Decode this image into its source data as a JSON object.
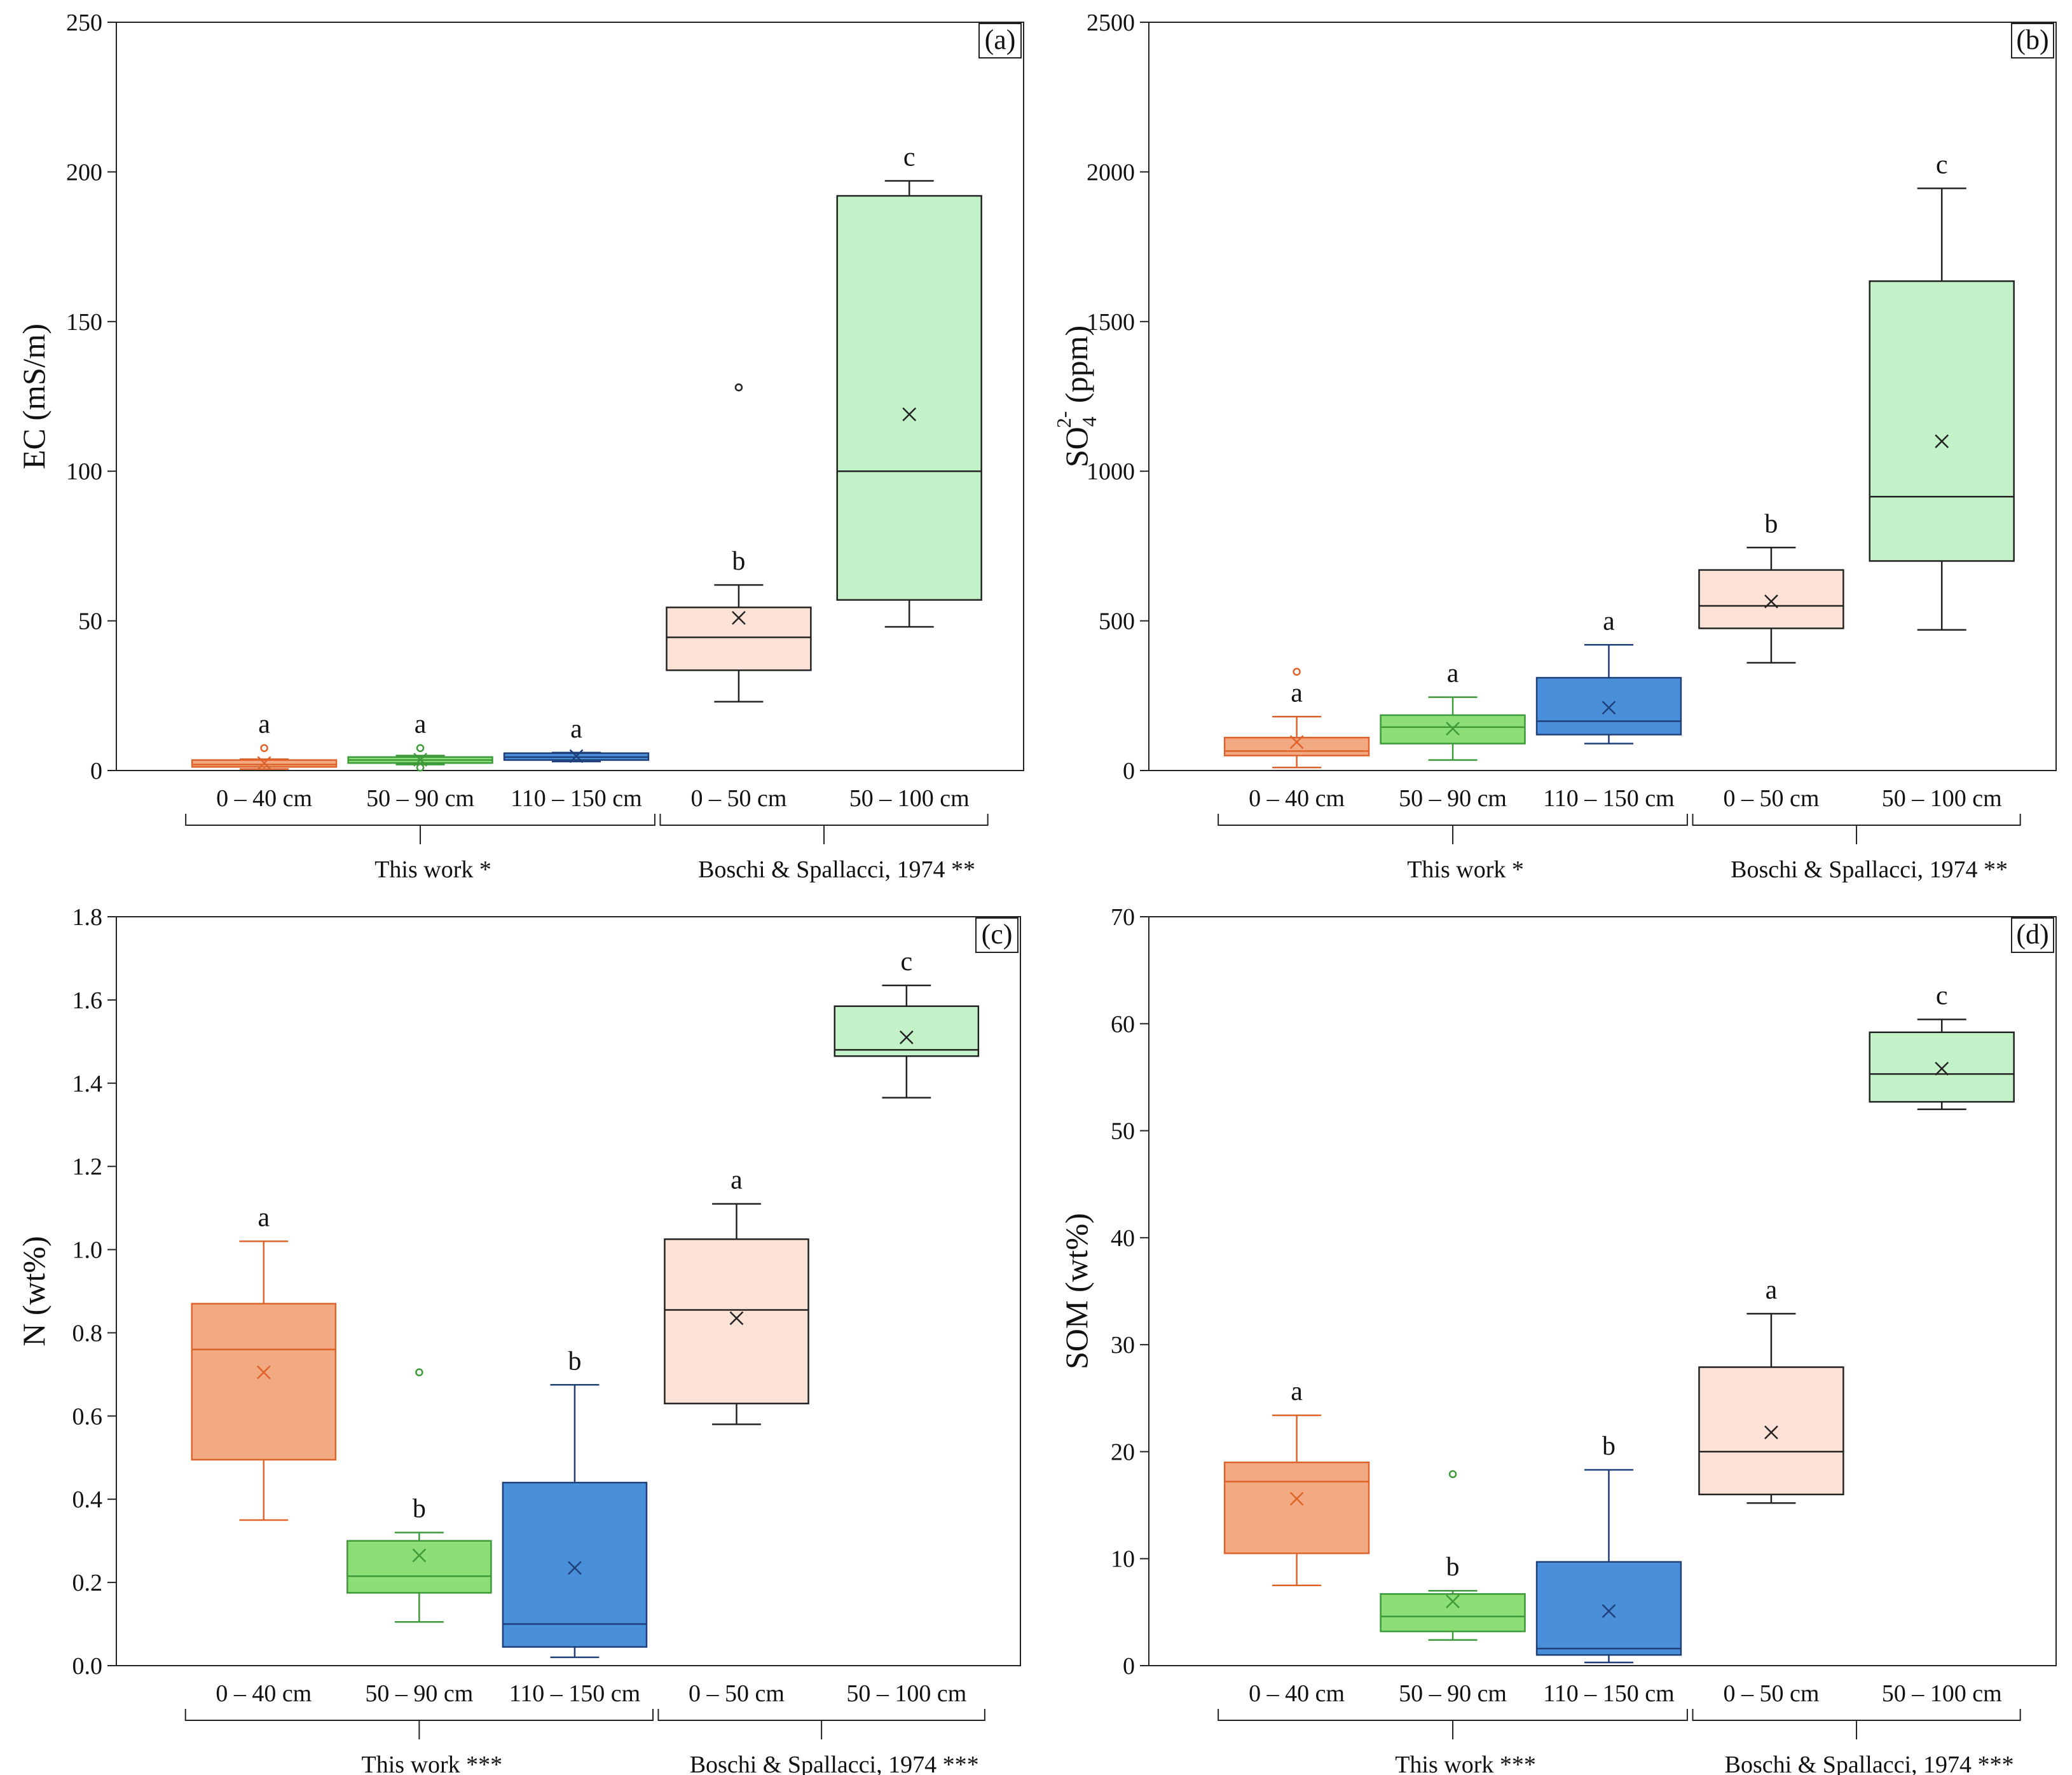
{
  "colors": {
    "orange_fill": "#f2aa82",
    "orange_line": "#e0622b",
    "green_fill": "#8ede77",
    "green_line": "#3c9a3a",
    "blue_fill": "#4a90d9",
    "blue_line": "#1f3f7a",
    "peach_fill": "#fce2d6",
    "peach_line": "#222222",
    "mint_fill": "#c3f2c8",
    "mint_line": "#222222"
  },
  "categories": [
    "0 – 40 cm",
    "50 – 90 cm",
    "110 – 150 cm",
    "0 – 50 cm",
    "50 – 100 cm"
  ],
  "chart_data": [
    {
      "type": "box",
      "panel": "(a)",
      "ylabel_main": "EC (mS/m)",
      "ylabel_sub": "",
      "ylabel_sup": "",
      "ylabel_tail": "",
      "ylim": [
        0,
        250
      ],
      "yticks": [
        0,
        50,
        100,
        150,
        200,
        250
      ],
      "ytick_labels": [
        "0",
        "50",
        "100",
        "150",
        "200",
        "250"
      ],
      "groups": [
        "This work *",
        "Boschi & Spallacci, 1974 **"
      ],
      "boxes": [
        {
          "category": "0 – 40 cm",
          "whisker_low": 0.5,
          "q1": 1.2,
          "median": 2.0,
          "q3": 3.5,
          "whisker_high": 3.8,
          "mean": 2.5,
          "outliers": [
            7.5
          ],
          "letter": "a",
          "style": "orange"
        },
        {
          "category": "50 – 90 cm",
          "whisker_low": 2.0,
          "q1": 2.5,
          "median": 3.5,
          "q3": 4.5,
          "whisker_high": 5.0,
          "mean": 3.6,
          "outliers": [
            7.5,
            1.0
          ],
          "letter": "a",
          "style": "green"
        },
        {
          "category": "110 – 150 cm",
          "whisker_low": 3.0,
          "q1": 3.5,
          "median": 4.5,
          "q3": 5.8,
          "whisker_high": 6.0,
          "mean": 4.8,
          "outliers": [],
          "letter": "a",
          "style": "blue"
        },
        {
          "category": "0 – 50 cm",
          "whisker_low": 23,
          "q1": 33.5,
          "median": 44.5,
          "q3": 54.5,
          "whisker_high": 62,
          "mean": 51,
          "outliers": [
            128
          ],
          "letter": "b",
          "style": "peach"
        },
        {
          "category": "50 – 100 cm",
          "whisker_low": 48,
          "q1": 57,
          "median": 100,
          "q3": 192,
          "whisker_high": 197,
          "mean": 119,
          "outliers": [],
          "letter": "c",
          "style": "mint"
        }
      ]
    },
    {
      "type": "box",
      "panel": "(b)",
      "ylabel_main": "SO",
      "ylabel_sub": "4",
      "ylabel_sup": "2-",
      "ylabel_tail": " (ppm)",
      "ylim": [
        0,
        2500
      ],
      "yticks": [
        0,
        500,
        1000,
        1500,
        2000,
        2500
      ],
      "ytick_labels": [
        "0",
        "500",
        "1000",
        "1500",
        "2000",
        "2500"
      ],
      "groups": [
        "This work *",
        "Boschi & Spallacci, 1974 **"
      ],
      "boxes": [
        {
          "category": "0 – 40 cm",
          "whisker_low": 10,
          "q1": 50,
          "median": 65,
          "q3": 110,
          "whisker_high": 180,
          "mean": 95,
          "outliers": [
            330
          ],
          "letter": "a",
          "style": "orange"
        },
        {
          "category": "50 – 90 cm",
          "whisker_low": 35,
          "q1": 90,
          "median": 145,
          "q3": 185,
          "whisker_high": 245,
          "mean": 140,
          "outliers": [],
          "letter": "a",
          "style": "green"
        },
        {
          "category": "110 – 150 cm",
          "whisker_low": 90,
          "q1": 120,
          "median": 165,
          "q3": 310,
          "whisker_high": 420,
          "mean": 210,
          "outliers": [],
          "letter": "a",
          "style": "blue"
        },
        {
          "category": "0 – 50 cm",
          "whisker_low": 360,
          "q1": 475,
          "median": 550,
          "q3": 670,
          "whisker_high": 745,
          "mean": 565,
          "outliers": [],
          "letter": "b",
          "style": "peach"
        },
        {
          "category": "50 – 100 cm",
          "whisker_low": 470,
          "q1": 700,
          "median": 915,
          "q3": 1635,
          "whisker_high": 1945,
          "mean": 1100,
          "outliers": [],
          "letter": "c",
          "style": "mint"
        }
      ]
    },
    {
      "type": "box",
      "panel": "(c)",
      "ylabel_main": "N (wt%)",
      "ylabel_sub": "",
      "ylabel_sup": "",
      "ylabel_tail": "",
      "ylim": [
        0,
        1.8
      ],
      "yticks": [
        0,
        0.2,
        0.4,
        0.6,
        0.8,
        1.0,
        1.2,
        1.4,
        1.6,
        1.8
      ],
      "ytick_labels": [
        "0.0",
        "0.2",
        "0.4",
        "0.6",
        "0.8",
        "1.0",
        "1.2",
        "1.4",
        "1.6",
        "1.8"
      ],
      "groups": [
        "This work ***",
        "Boschi & Spallacci, 1974 ***"
      ],
      "boxes": [
        {
          "category": "0 – 40 cm",
          "whisker_low": 0.35,
          "q1": 0.495,
          "median": 0.76,
          "q3": 0.87,
          "whisker_high": 1.02,
          "mean": 0.705,
          "outliers": [],
          "letter": "a",
          "style": "orange"
        },
        {
          "category": "50 – 90 cm",
          "whisker_low": 0.105,
          "q1": 0.175,
          "median": 0.215,
          "q3": 0.3,
          "whisker_high": 0.32,
          "mean": 0.265,
          "outliers": [
            0.705
          ],
          "letter": "b",
          "style": "green"
        },
        {
          "category": "110 – 150 cm",
          "whisker_low": 0.02,
          "q1": 0.045,
          "median": 0.1,
          "q3": 0.44,
          "whisker_high": 0.675,
          "mean": 0.235,
          "outliers": [],
          "letter": "b",
          "style": "blue"
        },
        {
          "category": "0 – 50 cm",
          "whisker_low": 0.58,
          "q1": 0.63,
          "median": 0.855,
          "q3": 1.025,
          "whisker_high": 1.11,
          "mean": 0.835,
          "outliers": [],
          "letter": "a",
          "style": "peach"
        },
        {
          "category": "50 – 100 cm",
          "whisker_low": 1.365,
          "q1": 1.465,
          "median": 1.48,
          "q3": 1.585,
          "whisker_high": 1.635,
          "mean": 1.51,
          "outliers": [],
          "letter": "c",
          "style": "mint"
        }
      ]
    },
    {
      "type": "box",
      "panel": "(d)",
      "ylabel_main": "SOM (wt%)",
      "ylabel_sub": "",
      "ylabel_sup": "",
      "ylabel_tail": "",
      "ylim": [
        0,
        70
      ],
      "yticks": [
        0,
        10,
        20,
        30,
        40,
        50,
        60,
        70
      ],
      "ytick_labels": [
        "0",
        "10",
        "20",
        "30",
        "40",
        "50",
        "60",
        "70"
      ],
      "groups": [
        "This work ***",
        "Boschi & Spallacci, 1974 ***"
      ],
      "boxes": [
        {
          "category": "0 – 40 cm",
          "whisker_low": 7.5,
          "q1": 10.5,
          "median": 17.2,
          "q3": 19.0,
          "whisker_high": 23.4,
          "mean": 15.6,
          "outliers": [],
          "letter": "a",
          "style": "orange"
        },
        {
          "category": "50 – 90 cm",
          "whisker_low": 2.4,
          "q1": 3.2,
          "median": 4.6,
          "q3": 6.7,
          "whisker_high": 7.0,
          "mean": 6.0,
          "outliers": [
            17.9
          ],
          "letter": "b",
          "style": "green"
        },
        {
          "category": "110 – 150 cm",
          "whisker_low": 0.3,
          "q1": 1.0,
          "median": 1.6,
          "q3": 9.7,
          "whisker_high": 18.3,
          "mean": 5.1,
          "outliers": [],
          "letter": "b",
          "style": "blue"
        },
        {
          "category": "0 – 50 cm",
          "whisker_low": 15.2,
          "q1": 16.0,
          "median": 20.0,
          "q3": 27.9,
          "whisker_high": 32.9,
          "mean": 21.8,
          "outliers": [],
          "letter": "a",
          "style": "peach"
        },
        {
          "category": "50 – 100 cm",
          "whisker_low": 52.0,
          "q1": 52.7,
          "median": 55.3,
          "q3": 59.2,
          "whisker_high": 60.4,
          "mean": 55.8,
          "outliers": [],
          "letter": "c",
          "style": "mint"
        }
      ]
    }
  ]
}
